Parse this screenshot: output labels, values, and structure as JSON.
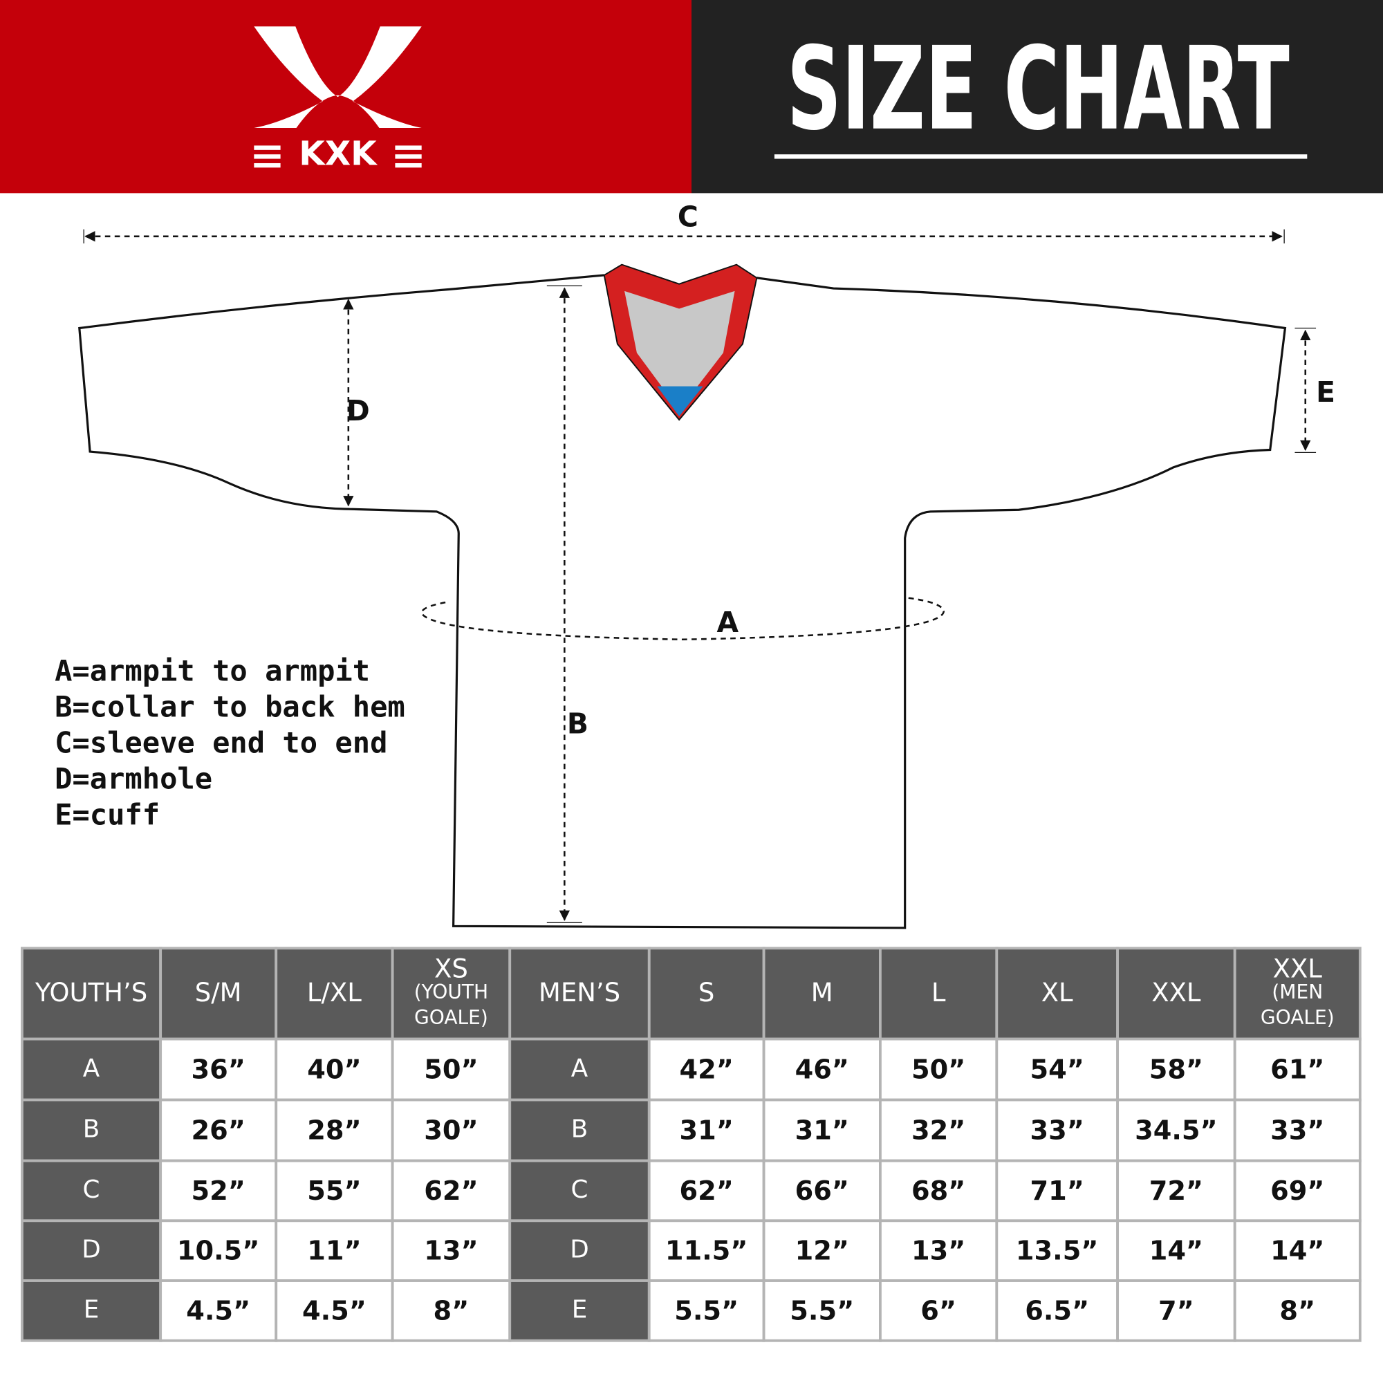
{
  "header": {
    "logo_text": "KXK",
    "title": "SIZE CHART"
  },
  "diagram": {
    "labels": [
      "C",
      "D",
      "E",
      "A",
      "B"
    ]
  },
  "legend": [
    "A=armpit to armpit",
    "B=collar to back hem",
    "C=sleeve end to end",
    "D=armhole",
    "E=cuff"
  ],
  "table": {
    "header": [
      "YOUTH’S",
      "S/M",
      "L/XL",
      {
        "main": "XS",
        "lines": [
          "(YOUTH",
          "GOALE)"
        ]
      },
      "MEN’S",
      "S",
      "M",
      "L",
      "XL",
      "XXL",
      {
        "main": "XXL",
        "lines": [
          "(MEN",
          "GOALE)"
        ]
      }
    ],
    "rows": [
      [
        "A",
        "36”",
        "40”",
        "50”",
        "A",
        "42”",
        "46”",
        "50”",
        "54”",
        "58”",
        "61”"
      ],
      [
        "B",
        "26”",
        "28”",
        "30”",
        "B",
        "31”",
        "31”",
        "32”",
        "33”",
        "34.5”",
        "33”"
      ],
      [
        "C",
        "52”",
        "55”",
        "62”",
        "C",
        "62”",
        "66”",
        "68”",
        "71”",
        "72”",
        "69”"
      ],
      [
        "D",
        "10.5”",
        "11”",
        "13”",
        "D",
        "11.5”",
        "12”",
        "13”",
        "13.5”",
        "14”",
        "14”"
      ],
      [
        "E",
        "4.5”",
        "4.5”",
        "8”",
        "E",
        "5.5”",
        "5.5”",
        "6”",
        "6.5”",
        "7”",
        "8”"
      ]
    ]
  }
}
